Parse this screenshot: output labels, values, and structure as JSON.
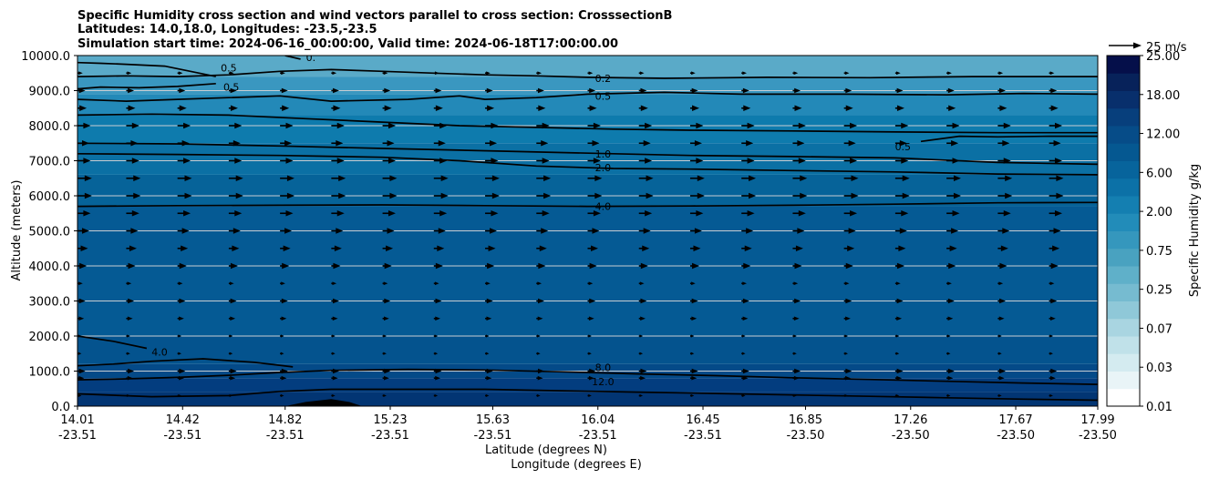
{
  "chart_data": {
    "type": "contourf",
    "title_lines": [
      "Specific Humidity cross section and wind vectors parallel to cross section: CrosssectionB",
      "Latitudes: 14.0,18.0, Longitudes: -23.5,-23.5",
      "Simulation start time: 2024-06-16_00:00:00, Valid time: 2024-06-18T17:00:00.00"
    ],
    "xlabel_lat": "Latitude (degrees N)",
    "xlabel_lon": "Longitude (degrees E)",
    "ylabel": "Altitude (meters)",
    "ylim": [
      0,
      10000
    ],
    "yticks": [
      0,
      1000,
      2000,
      3000,
      4000,
      5000,
      6000,
      7000,
      8000,
      9000,
      10000
    ],
    "ytick_labels": [
      "0.0",
      "1000.0",
      "2000.0",
      "3000.0",
      "4000.0",
      "5000.0",
      "6000.0",
      "7000.0",
      "8000.0",
      "9000.0",
      "10000.0"
    ],
    "xlim": [
      14.01,
      17.99
    ],
    "xticks": [
      {
        "lat": "14.01",
        "lon": "-23.51",
        "x": 14.01
      },
      {
        "lat": "14.42",
        "lon": "-23.51",
        "x": 14.42
      },
      {
        "lat": "14.82",
        "lon": "-23.51",
        "x": 14.82
      },
      {
        "lat": "15.23",
        "lon": "-23.51",
        "x": 15.23
      },
      {
        "lat": "15.63",
        "lon": "-23.51",
        "x": 15.63
      },
      {
        "lat": "16.04",
        "lon": "-23.51",
        "x": 16.04
      },
      {
        "lat": "16.45",
        "lon": "-23.51",
        "x": 16.45
      },
      {
        "lat": "16.85",
        "lon": "-23.50",
        "x": 16.85
      },
      {
        "lat": "17.26",
        "lon": "-23.50",
        "x": 17.26
      },
      {
        "lat": "17.67",
        "lon": "-23.50",
        "x": 17.67
      },
      {
        "lat": "17.99",
        "lon": "-23.50",
        "x": 17.99
      }
    ],
    "grid": "horizontal",
    "colorbar": {
      "label": "Specific Humidity g/kg",
      "ticks": [
        "0.01",
        "0.03",
        "0.07",
        "0.25",
        "0.75",
        "2.00",
        "6.00",
        "12.00",
        "18.00",
        "25.00"
      ],
      "colors": [
        "#ffffff",
        "#e9f4f7",
        "#d4ebf0",
        "#c0e1e9",
        "#a9d5e1",
        "#8fc8d8",
        "#76bbd0",
        "#5fb0c9",
        "#49a2c0",
        "#3597bd",
        "#228cb9",
        "#147fb1",
        "#0c71a7",
        "#07649c",
        "#055891",
        "#064c88",
        "#073f7c",
        "#082f6c",
        "#07225a",
        "#050f4a"
      ]
    },
    "bands": [
      {
        "color": "#023573",
        "ylow": 0,
        "yhigh": 400
      },
      {
        "color": "#033d7f",
        "ylow": 400,
        "yhigh": 800
      },
      {
        "color": "#044a88",
        "ylow": 800,
        "yhigh": 1200
      },
      {
        "color": "#04538e",
        "ylow": 1200,
        "yhigh": 2000
      },
      {
        "color": "#055a94",
        "ylow": 2000,
        "yhigh": 5700
      },
      {
        "color": "#066399",
        "ylow": 5700,
        "yhigh": 6600
      },
      {
        "color": "#0b70a4",
        "ylow": 6600,
        "yhigh": 7500
      },
      {
        "color": "#0e7bad",
        "ylow": 7500,
        "yhigh": 8300
      },
      {
        "color": "#2389b8",
        "ylow": 8300,
        "yhigh": 8900
      },
      {
        "color": "#3a97c0",
        "ylow": 8900,
        "yhigh": 9400
      },
      {
        "color": "#5aaac8",
        "ylow": 9400,
        "yhigh": 10000
      }
    ],
    "terrain": {
      "x": [
        14.82,
        14.9,
        15.0,
        15.07,
        15.12
      ],
      "y": [
        0,
        120,
        200,
        120,
        0
      ]
    },
    "contours": [
      {
        "label": "12.0",
        "label_at": {
          "x": 16.06,
          "y": 700
        },
        "x": [
          14.01,
          14.3,
          14.6,
          14.8,
          15.0,
          15.3,
          15.6,
          15.9,
          16.2,
          16.5,
          16.8,
          17.1,
          17.4,
          17.7,
          17.99
        ],
        "y": [
          350,
          270,
          300,
          420,
          480,
          480,
          480,
          440,
          400,
          360,
          320,
          280,
          240,
          200,
          170
        ]
      },
      {
        "label": "8.0",
        "label_at": {
          "x": 16.06,
          "y": 1100
        },
        "x": [
          14.01,
          14.2,
          14.4,
          14.6,
          14.8,
          15.0,
          15.3,
          15.6,
          15.9,
          16.2,
          16.5,
          16.8,
          17.1,
          17.4,
          17.7,
          17.99
        ],
        "y": [
          750,
          780,
          820,
          880,
          960,
          1020,
          1050,
          1030,
          980,
          920,
          870,
          810,
          760,
          710,
          660,
          620
        ]
      },
      {
        "label": "4.0",
        "label_at": {
          "x": 14.33,
          "y": 1550
        },
        "x": [
          14.01,
          14.15,
          14.28
        ],
        "y": [
          2000,
          1850,
          1650
        ]
      },
      {
        "label": "",
        "label_at": null,
        "x": [
          14.01,
          14.15,
          14.3,
          14.5,
          14.7,
          14.85
        ],
        "y": [
          1150,
          1200,
          1280,
          1350,
          1250,
          1120
        ]
      },
      {
        "label": "4.0",
        "label_at": {
          "x": 16.06,
          "y": 5700
        },
        "x": [
          14.01,
          14.4,
          14.8,
          15.2,
          15.6,
          16.0,
          16.4,
          16.8,
          17.2,
          17.6,
          17.99
        ],
        "y": [
          5700,
          5720,
          5730,
          5740,
          5720,
          5700,
          5710,
          5730,
          5760,
          5800,
          5810
        ]
      },
      {
        "label": "2.0",
        "label_at": {
          "x": 16.06,
          "y": 6800
        },
        "x": [
          14.01,
          14.4,
          14.8,
          15.2,
          15.5,
          15.8,
          16.1,
          16.4,
          16.8,
          17.2,
          17.6,
          17.99
        ],
        "y": [
          7200,
          7180,
          7150,
          7100,
          7000,
          6850,
          6780,
          6760,
          6720,
          6680,
          6620,
          6600
        ]
      },
      {
        "label": "1.0",
        "label_at": {
          "x": 16.06,
          "y": 7200
        },
        "x": [
          14.01,
          14.4,
          14.8,
          15.2,
          15.5,
          15.8,
          16.1,
          16.4,
          16.8,
          17.2,
          17.6,
          17.99
        ],
        "y": [
          7500,
          7480,
          7420,
          7350,
          7300,
          7250,
          7200,
          7150,
          7120,
          7080,
          6950,
          6900
        ]
      },
      {
        "label": "0.5",
        "label_at": {
          "x": 17.23,
          "y": 7400
        },
        "x": [
          17.3,
          17.45,
          17.6,
          17.8,
          17.99
        ],
        "y": [
          7550,
          7700,
          7680,
          7700,
          7700
        ]
      },
      {
        "label": "",
        "label_at": null,
        "x": [
          14.01,
          14.3,
          14.6,
          14.9,
          15.2,
          15.5,
          15.8,
          16.1,
          16.4,
          16.8,
          17.2,
          17.6,
          17.99
        ],
        "y": [
          8300,
          8330,
          8300,
          8200,
          8100,
          8000,
          7950,
          7900,
          7870,
          7850,
          7820,
          7800,
          7800
        ]
      },
      {
        "label": "0.5",
        "label_at": {
          "x": 16.06,
          "y": 8850
        },
        "x": [
          14.01,
          14.2,
          14.4,
          14.6,
          14.8,
          15.0,
          15.3,
          15.5,
          15.6,
          15.8,
          16.0,
          16.3,
          16.6,
          17.0,
          17.4,
          17.7,
          17.99
        ],
        "y": [
          8750,
          8700,
          8750,
          8800,
          8850,
          8700,
          8750,
          8850,
          8750,
          8800,
          8900,
          8950,
          8900,
          8900,
          8880,
          8920,
          8900
        ]
      },
      {
        "label": "0.5",
        "label_at": {
          "x": 14.61,
          "y": 9100
        },
        "x": [
          14.01,
          14.1,
          14.25,
          14.4,
          14.55
        ],
        "y": [
          9050,
          9100,
          9080,
          9120,
          9200
        ]
      },
      {
        "label": "0.2",
        "label_at": {
          "x": 16.06,
          "y": 9350
        },
        "x": [
          14.01,
          14.2,
          14.4,
          14.6,
          14.8,
          15.0,
          15.2,
          15.4,
          15.6,
          15.8,
          16.0,
          16.3,
          16.7,
          17.1,
          17.5,
          17.99
        ],
        "y": [
          9400,
          9420,
          9400,
          9450,
          9550,
          9600,
          9550,
          9500,
          9450,
          9420,
          9380,
          9350,
          9380,
          9370,
          9400,
          9400
        ]
      },
      {
        "label": "0.5",
        "label_at": {
          "x": 14.6,
          "y": 9650
        },
        "x": [
          14.01,
          14.1,
          14.2,
          14.35,
          14.45,
          14.55
        ],
        "y": [
          9800,
          9780,
          9750,
          9700,
          9550,
          9400
        ]
      },
      {
        "label": "0.",
        "label_at": {
          "x": 14.92,
          "y": 9950
        },
        "x": [
          14.82,
          14.88
        ],
        "y": [
          10000,
          9900
        ]
      }
    ],
    "wind": {
      "key_label": "25 m/s",
      "key_speed": 25,
      "x": [
        14.01,
        14.2,
        14.4,
        14.6,
        14.8,
        15.0,
        15.2,
        15.4,
        15.6,
        15.8,
        16.0,
        16.2,
        16.4,
        16.6,
        16.8,
        17.0,
        17.2,
        17.4,
        17.6,
        17.8,
        17.99
      ],
      "levels": [
        {
          "y": 300,
          "speed": 3
        },
        {
          "y": 800,
          "speed": 5
        },
        {
          "y": 1000,
          "speed": 6
        },
        {
          "y": 1500,
          "speed": 3
        },
        {
          "y": 2000,
          "speed": 3
        },
        {
          "y": 2500,
          "speed": 5
        },
        {
          "y": 3000,
          "speed": 6
        },
        {
          "y": 3500,
          "speed": 4
        },
        {
          "y": 4000,
          "speed": 7
        },
        {
          "y": 4500,
          "speed": 8
        },
        {
          "y": 5000,
          "speed": 9
        },
        {
          "y": 5500,
          "speed": 10
        },
        {
          "y": 6000,
          "speed": 11
        },
        {
          "y": 6500,
          "speed": 11
        },
        {
          "y": 7000,
          "speed": 10
        },
        {
          "y": 7500,
          "speed": 9
        },
        {
          "y": 8000,
          "speed": 10
        },
        {
          "y": 8500,
          "speed": 7
        },
        {
          "y": 9000,
          "speed": 6
        },
        {
          "y": 9500,
          "speed": 4
        }
      ]
    }
  }
}
